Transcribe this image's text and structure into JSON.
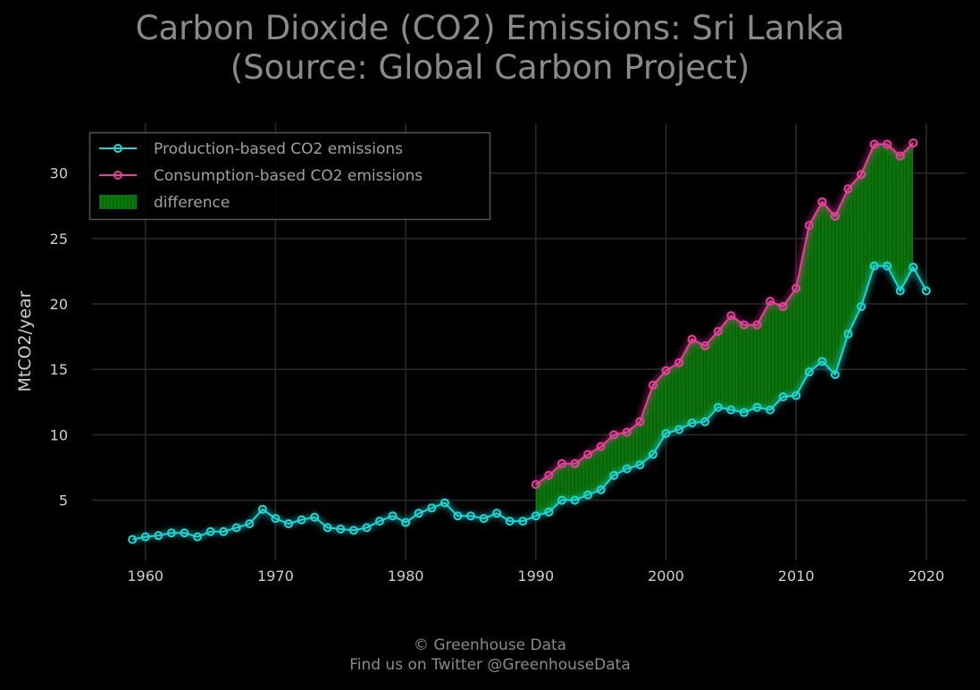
{
  "title": {
    "line1": "Carbon Dioxide (CO2) Emissions: Sri Lanka",
    "line2": "(Source: Global Carbon Project)"
  },
  "footer": {
    "line1": "© Greenhouse Data",
    "line2": "Find us on Twitter @GreenhouseData"
  },
  "colors": {
    "background": "#000000",
    "production": "#1fd6d6",
    "consumption": "#e8409c",
    "difference": "#0a7a0a",
    "grid": "#2a2a2a",
    "text": "#8a8a8a"
  },
  "chart_data": {
    "type": "line",
    "ylabel": "MtCO2/year",
    "xlabel": "",
    "xlim": [
      1955.9,
      2023.1
    ],
    "ylim": [
      0.4,
      33.8
    ],
    "x_ticks": [
      1960,
      1970,
      1980,
      1990,
      2000,
      2010,
      2020
    ],
    "y_ticks": [
      5,
      10,
      15,
      20,
      25,
      30
    ],
    "grid": true,
    "legend_position": "top-left",
    "series": [
      {
        "name": "Production-based CO2 emissions",
        "x": [
          1959,
          1960,
          1961,
          1962,
          1963,
          1964,
          1965,
          1966,
          1967,
          1968,
          1969,
          1970,
          1971,
          1972,
          1973,
          1974,
          1975,
          1976,
          1977,
          1978,
          1979,
          1980,
          1981,
          1982,
          1983,
          1984,
          1985,
          1986,
          1987,
          1988,
          1989,
          1990,
          1991,
          1992,
          1993,
          1994,
          1995,
          1996,
          1997,
          1998,
          1999,
          2000,
          2001,
          2002,
          2003,
          2004,
          2005,
          2006,
          2007,
          2008,
          2009,
          2010,
          2011,
          2012,
          2013,
          2014,
          2015,
          2016,
          2017,
          2018,
          2019,
          2020
        ],
        "values": [
          2.0,
          2.2,
          2.3,
          2.5,
          2.5,
          2.2,
          2.6,
          2.6,
          2.9,
          3.2,
          4.3,
          3.6,
          3.2,
          3.5,
          3.7,
          2.9,
          2.8,
          2.7,
          2.9,
          3.4,
          3.8,
          3.3,
          4.0,
          4.4,
          4.8,
          3.8,
          3.8,
          3.6,
          4.0,
          3.4,
          3.4,
          3.8,
          4.1,
          5.0,
          5.0,
          5.4,
          5.8,
          6.9,
          7.4,
          7.7,
          8.5,
          10.1,
          10.4,
          10.9,
          11.0,
          12.1,
          11.9,
          11.7,
          12.1,
          11.9,
          12.9,
          13.0,
          14.8,
          15.6,
          14.6,
          17.7,
          19.8,
          22.9,
          22.9,
          21.0,
          22.8,
          21.0
        ]
      },
      {
        "name": "Consumption-based CO2 emissions",
        "x": [
          1990,
          1991,
          1992,
          1993,
          1994,
          1995,
          1996,
          1997,
          1998,
          1999,
          2000,
          2001,
          2002,
          2003,
          2004,
          2005,
          2006,
          2007,
          2008,
          2009,
          2010,
          2011,
          2012,
          2013,
          2014,
          2015,
          2016,
          2017,
          2018,
          2019
        ],
        "values": [
          6.2,
          6.9,
          7.8,
          7.8,
          8.5,
          9.1,
          10.0,
          10.2,
          11.0,
          13.8,
          14.9,
          15.5,
          17.3,
          16.8,
          17.9,
          19.1,
          18.4,
          18.4,
          20.2,
          19.8,
          21.2,
          26.0,
          27.8,
          26.7,
          28.8,
          29.9,
          32.2,
          32.2,
          31.3,
          32.3
        ]
      }
    ],
    "legend": [
      "Production-based CO2 emissions",
      "Consumption-based CO2 emissions",
      "difference"
    ]
  }
}
